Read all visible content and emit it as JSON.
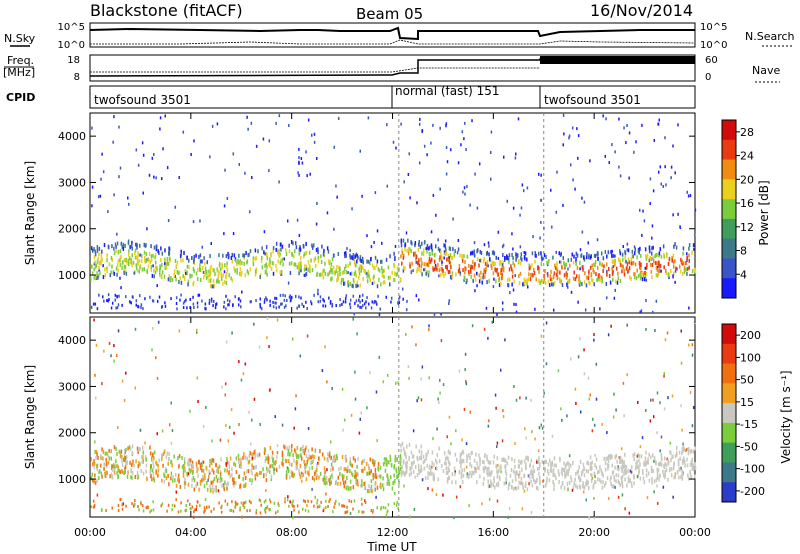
{
  "header": {
    "station": "Blackstone (fitACF)",
    "beam": "Beam 05",
    "date": "16/Nov/2014"
  },
  "aux": {
    "nsky_label": "N.Sky",
    "nsearch_label": "N.Search",
    "freq_label_1": "Freq.",
    "freq_label_2": "[MHz]",
    "nave_label": "Nave",
    "cpid_label": "CPID",
    "nsky_ticks": [
      "10^5",
      "10^0"
    ],
    "nsearch_ticks": [
      "10^5",
      "10^0"
    ],
    "freq_ticks": [
      "18",
      "8"
    ],
    "nave_ticks": [
      "60",
      "0"
    ],
    "cpid_segments": [
      {
        "name": "twofsound 3501",
        "start_hour": 0,
        "end_hour": 12.25
      },
      {
        "name": "normal (fast) 151",
        "start_hour": 12.25,
        "end_hour": 18
      },
      {
        "name": "twofsound 3501",
        "start_hour": 18,
        "end_hour": 24
      }
    ]
  },
  "chart_data": [
    {
      "type": "heatmap",
      "title": "",
      "xlabel": "Time UT",
      "ylabel": "Slant Range [km]",
      "x_ticks": [
        "00:00",
        "04:00",
        "08:00",
        "12:00",
        "16:00",
        "20:00",
        "00:00"
      ],
      "y_ticks": [
        1000,
        2000,
        3000,
        4000
      ],
      "xlim_hours": [
        0,
        24
      ],
      "ylim_km": [
        180,
        4500
      ],
      "colorbar": {
        "label": "Power [dB]",
        "ticks": [
          4,
          8,
          12,
          16,
          20,
          24,
          28
        ],
        "range": [
          0,
          30
        ],
        "colors": [
          "#1a1aff",
          "#3a55c8",
          "#3c7a8a",
          "#3f9f5a",
          "#7ccd3c",
          "#e8d01c",
          "#f08c10",
          "#ea3a12",
          "#d10a0a"
        ]
      }
    },
    {
      "type": "heatmap",
      "title": "",
      "xlabel": "Time UT",
      "ylabel": "Slant Range [km]",
      "x_ticks": [
        "00:00",
        "04:00",
        "08:00",
        "12:00",
        "16:00",
        "20:00",
        "00:00"
      ],
      "y_ticks": [
        1000,
        2000,
        3000,
        4000
      ],
      "xlim_hours": [
        0,
        24
      ],
      "ylim_km": [
        180,
        4500
      ],
      "colorbar": {
        "label": "Velocity [m s⁻¹]",
        "ticks": [
          200,
          100,
          50,
          15,
          -15,
          -50,
          -100,
          -200
        ],
        "colors": [
          "#2a3cc8",
          "#3c7a8a",
          "#3f9f5a",
          "#7ccd3c",
          "#c8c8c0",
          "#f0a020",
          "#f07010",
          "#ea3a12",
          "#d10a0a"
        ]
      }
    }
  ]
}
